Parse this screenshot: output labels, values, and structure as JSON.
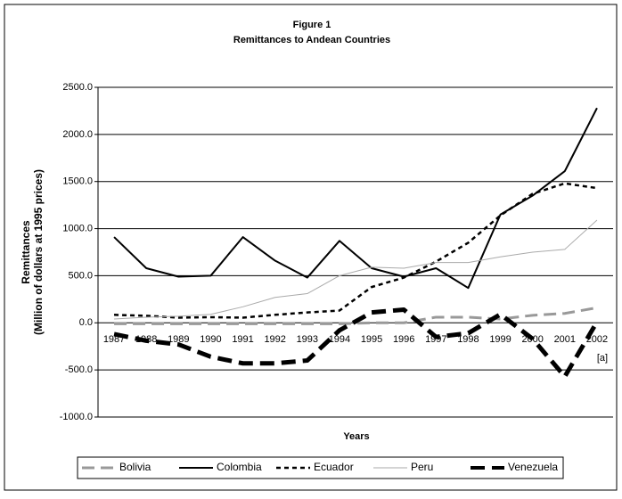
{
  "chart_data": {
    "type": "line",
    "title": "Figure 1",
    "subtitle": "Remittances to Andean Countries",
    "x_label": "Years",
    "y_label": [
      "Remittances",
      "(Million of dollars at 1995 prices)"
    ],
    "annotation": "[a]",
    "categories": [
      "1987",
      "1988",
      "1989",
      "1990",
      "1991",
      "1992",
      "1993",
      "1994",
      "1995",
      "1996",
      "1997",
      "1998",
      "1999",
      "2000",
      "2001",
      "2002"
    ],
    "ylim": [
      -1000,
      2500
    ],
    "yticks": [
      {
        "value": -1000,
        "label": "-1000.0"
      },
      {
        "value": -500,
        "label": "-500.0"
      },
      {
        "value": 0,
        "label": "0.0"
      },
      {
        "value": 500,
        "label": "500.0"
      },
      {
        "value": 1000,
        "label": "1000.0"
      },
      {
        "value": 1500,
        "label": "1500.0"
      },
      {
        "value": 2000,
        "label": "2000.0"
      },
      {
        "value": 2500,
        "label": "2500.0"
      }
    ],
    "grid": true,
    "legend": "bottom",
    "series": [
      {
        "name": "Bolivia",
        "color": "#999999",
        "values": [
          -10,
          -10,
          -10,
          -10,
          -10,
          -10,
          -10,
          -10,
          0,
          0,
          60,
          60,
          40,
          80,
          100,
          160
        ]
      },
      {
        "name": "Colombia",
        "color": "#000000",
        "values": [
          910,
          580,
          490,
          500,
          910,
          660,
          480,
          870,
          580,
          490,
          580,
          370,
          1150,
          1350,
          1610,
          2280
        ]
      },
      {
        "name": "Ecuador",
        "color": "#000000",
        "values": [
          85,
          75,
          55,
          60,
          55,
          85,
          110,
          130,
          380,
          480,
          650,
          850,
          1140,
          1370,
          1480,
          1430
        ]
      },
      {
        "name": "Peru",
        "color": "#aaaaaa",
        "values": [
          40,
          60,
          70,
          90,
          170,
          270,
          310,
          500,
          590,
          580,
          640,
          640,
          700,
          750,
          780,
          1090
        ]
      },
      {
        "name": "Venezuela",
        "color": "#000000",
        "values": [
          -120,
          -190,
          -230,
          -360,
          -430,
          -430,
          -400,
          -80,
          110,
          140,
          -150,
          -110,
          90,
          -170,
          -570,
          10
        ]
      }
    ]
  }
}
